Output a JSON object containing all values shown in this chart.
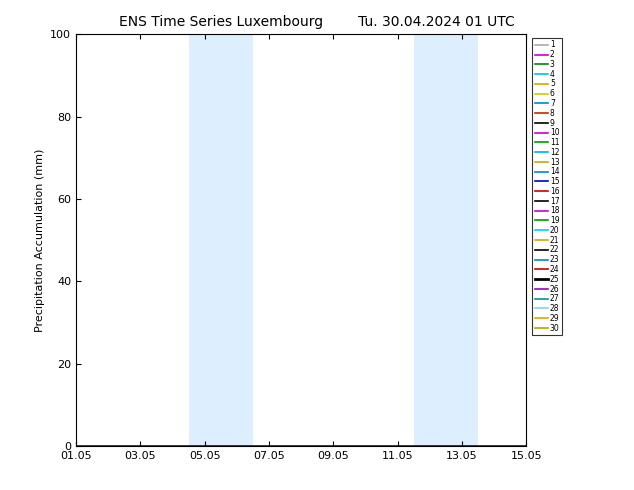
{
  "title_left": "ENS Time Series Luxembourg",
  "title_right": "Tu. 30.04.2024 01 UTC",
  "ylabel": "Precipitation Accumulation (mm)",
  "ylim": [
    0,
    100
  ],
  "yticks": [
    0,
    20,
    40,
    60,
    80,
    100
  ],
  "xlim": [
    0,
    14
  ],
  "xtick_labels": [
    "01.05",
    "03.05",
    "05.05",
    "07.05",
    "09.05",
    "11.05",
    "13.05",
    "15.05"
  ],
  "xtick_positions": [
    0,
    2,
    4,
    6,
    8,
    10,
    12,
    14
  ],
  "shaded_regions": [
    {
      "start": 3.5,
      "end": 4.5
    },
    {
      "start": 4.5,
      "end": 5.5
    },
    {
      "start": 10.5,
      "end": 11.5
    },
    {
      "start": 11.5,
      "end": 12.5
    }
  ],
  "shade_color": "#ddeeff",
  "member_colors": [
    "#aaaaaa",
    "#cc00cc",
    "#008800",
    "#00bbff",
    "#ccaa00",
    "#cccc00",
    "#0088cc",
    "#cc2200",
    "#000000",
    "#cc00cc",
    "#009900",
    "#00aaff",
    "#ccaa00",
    "#0088cc",
    "#0000cc",
    "#cc0000",
    "#000000",
    "#cc00cc",
    "#009900",
    "#00ccff",
    "#ccaa00",
    "#000000",
    "#0088cc",
    "#cc0000",
    "#000000",
    "#9900cc",
    "#009988",
    "#88ccff",
    "#ddaa00",
    "#aaaa00"
  ],
  "n_members": 30,
  "title_fontsize": 10,
  "ylabel_fontsize": 8,
  "tick_fontsize": 8,
  "legend_fontsize": 5.5
}
